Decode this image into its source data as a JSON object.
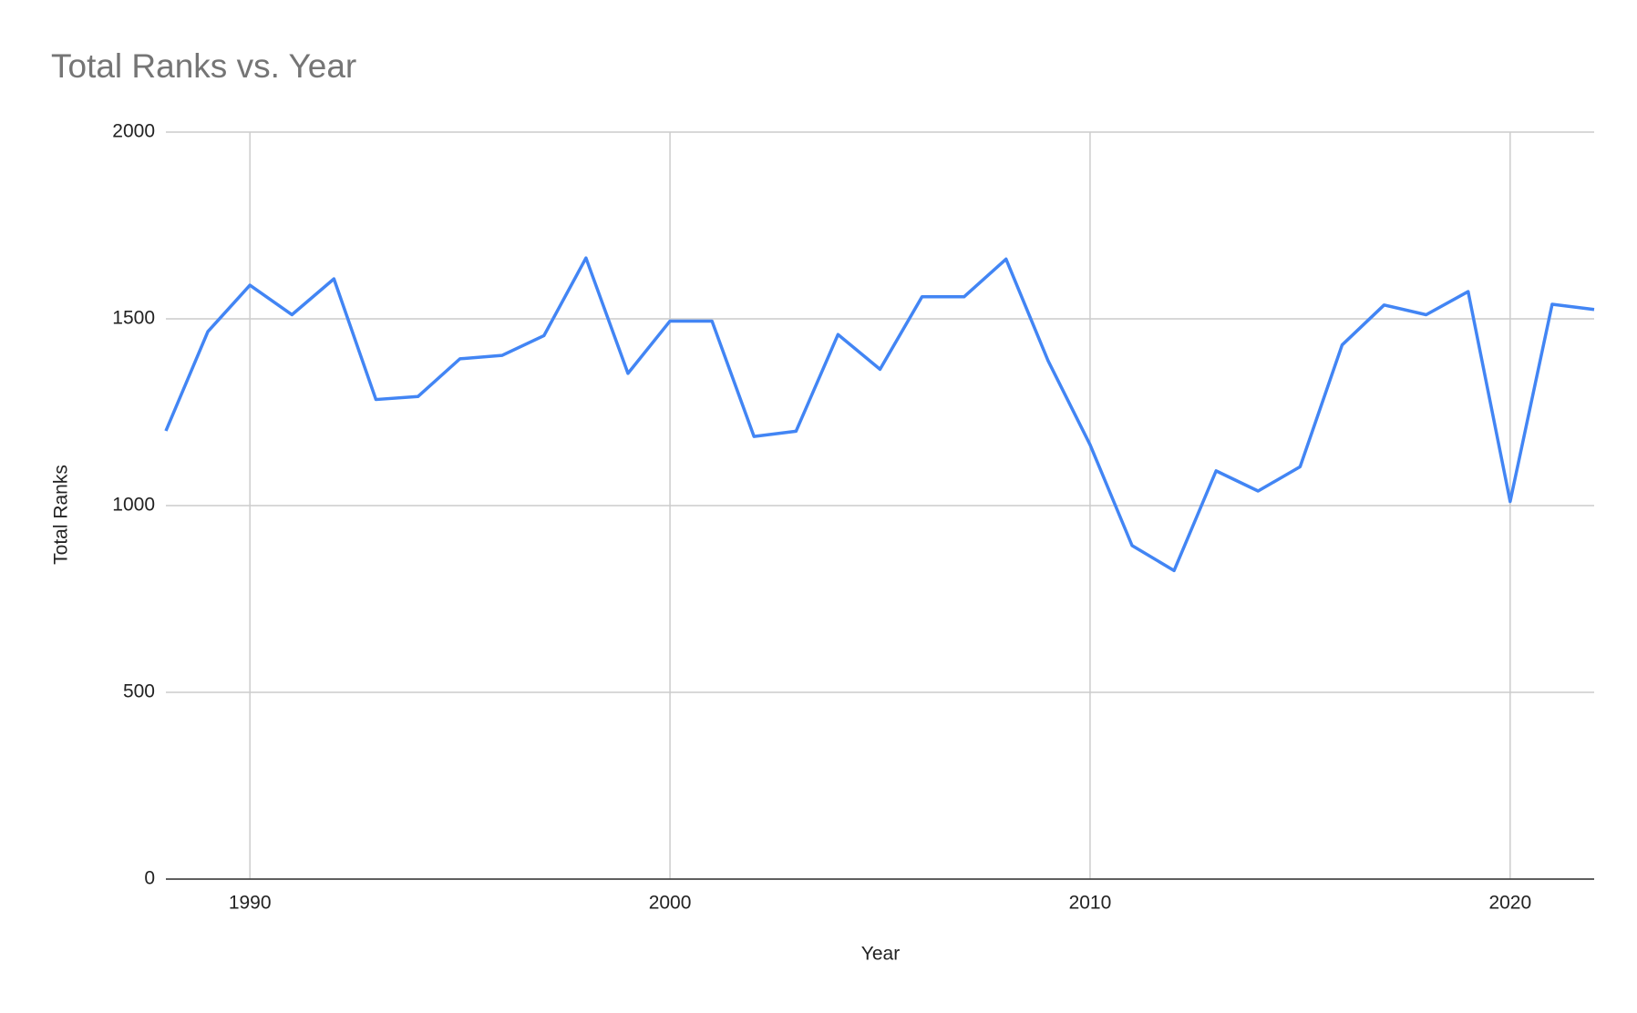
{
  "chart_data": {
    "type": "line",
    "title": "Total Ranks vs. Year",
    "x_label": "Year",
    "y_label": "Total Ranks",
    "series": [
      {
        "name": "Total Ranks",
        "color": "#4285f4",
        "x": [
          1988,
          1989,
          1990,
          1991,
          1992,
          1993,
          1994,
          1995,
          1996,
          1997,
          1998,
          1999,
          2000,
          2001,
          2002,
          2003,
          2004,
          2005,
          2006,
          2007,
          2008,
          2009,
          2010,
          2011,
          2012,
          2013,
          2014,
          2015,
          2016,
          2017,
          2018,
          2019,
          2020,
          2021,
          2022
        ],
        "values": [
          1200,
          1466,
          1590,
          1511,
          1607,
          1284,
          1292,
          1393,
          1402,
          1455,
          1663,
          1354,
          1494,
          1494,
          1185,
          1199,
          1458,
          1365,
          1559,
          1559,
          1660,
          1388,
          1163,
          893,
          826,
          1093,
          1039,
          1104,
          1430,
          1537,
          1511,
          1573,
          1011,
          1539,
          1525
        ]
      }
    ],
    "xlim": [
      1988,
      2022
    ],
    "xticks": [
      1990,
      2000,
      2010,
      2020
    ],
    "ylim": [
      0,
      2000
    ],
    "yticks": [
      0,
      500,
      1000,
      1500,
      2000
    ],
    "grid": true
  }
}
